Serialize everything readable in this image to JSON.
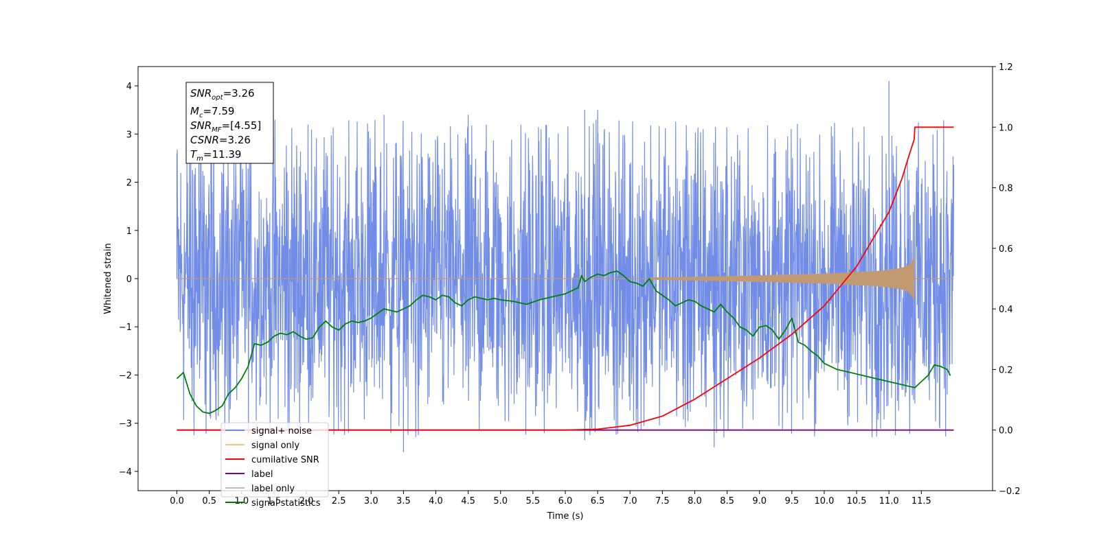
{
  "chart_data": {
    "type": "line",
    "xlabel": "Time (s)",
    "ylabel": "Whitened strain",
    "xlim": [
      -0.6,
      12.6
    ],
    "ylim": [
      -4.4,
      4.4
    ],
    "y2lim": [
      -0.2,
      1.2
    ],
    "x_ticks": [
      "0.0",
      "0.5",
      "1.0",
      "1.5",
      "2.0",
      "2.5",
      "3.0",
      "3.5",
      "4.0",
      "4.5",
      "5.0",
      "5.5",
      "6.0",
      "6.5",
      "7.0",
      "7.5",
      "8.0",
      "8.5",
      "9.0",
      "9.5",
      "10.0",
      "10.5",
      "11.0",
      "11.5"
    ],
    "y_ticks": [
      "4",
      "3",
      "2",
      "1",
      "0",
      "−1",
      "−2",
      "−3",
      "−4"
    ],
    "y2_ticks": [
      "1.2",
      "1.0",
      "0.8",
      "0.6",
      "0.4",
      "0.2",
      "0.0",
      "−0.2"
    ],
    "info_box": {
      "snr_opt": "=3.26",
      "mc": "=7.59",
      "snr_mf": "=[4.55]",
      "csnr": "=3.26",
      "tm": "=11.39"
    },
    "legend": [
      {
        "label": "signal+ noise",
        "color": "#6a87e6"
      },
      {
        "label": "signal only",
        "color": "#f5c47a"
      },
      {
        "label": "cumilative SNR",
        "color": "#ff0000"
      },
      {
        "label": "label",
        "color": "#800080"
      },
      {
        "label": "label only",
        "color": "#bbbbbb"
      },
      {
        "label": "signal statistics",
        "color": "#008000"
      }
    ],
    "series": [
      {
        "name": "signal+ noise",
        "axis": "left",
        "x_range": [
          0.0,
          12.0
        ],
        "envelope_upper": 2.3,
        "envelope_lower": -2.3,
        "spikes": [
          [
            0.0,
            2.6
          ],
          [
            3.2,
            3.4
          ],
          [
            4.5,
            3.4
          ],
          [
            6.5,
            3.5
          ],
          [
            6.3,
            3.5
          ],
          [
            11.0,
            4.1
          ],
          [
            3.5,
            -3.6
          ],
          [
            6.3,
            -3.35
          ],
          [
            8.3,
            -3.5
          ],
          [
            11.1,
            -3.25
          ]
        ],
        "color": "#6a87e6"
      },
      {
        "name": "signal only",
        "axis": "left",
        "x_range": [
          0.0,
          12.0
        ],
        "chirp_start": 7.3,
        "chirp_end": 11.39,
        "max_amplitude": 0.42,
        "color": "#c29a72"
      },
      {
        "name": "cumilative SNR",
        "axis": "right",
        "x": [
          0.0,
          6.0,
          6.5,
          7.0,
          7.5,
          8.0,
          8.5,
          9.0,
          9.5,
          10.0,
          10.5,
          11.0,
          11.2,
          11.3,
          11.39,
          11.4,
          12.0
        ],
        "values": [
          0.0,
          0.0,
          0.003,
          0.016,
          0.046,
          0.102,
          0.17,
          0.238,
          0.316,
          0.41,
          0.54,
          0.72,
          0.83,
          0.9,
          0.96,
          1.0,
          1.0
        ],
        "color": "#ff0000"
      },
      {
        "name": "label",
        "axis": "right",
        "x": [
          0.0,
          12.0
        ],
        "values": [
          0.0,
          0.0
        ],
        "color": "#800080"
      },
      {
        "name": "signal statistics",
        "axis": "right",
        "x": [
          0.0,
          0.1,
          0.2,
          0.3,
          0.4,
          0.5,
          0.6,
          0.7,
          0.8,
          0.9,
          1.0,
          1.1,
          1.2,
          1.3,
          1.4,
          1.5,
          1.6,
          1.7,
          1.8,
          1.9,
          2.0,
          2.1,
          2.2,
          2.3,
          2.4,
          2.5,
          2.6,
          2.7,
          2.8,
          2.9,
          3.0,
          3.2,
          3.4,
          3.6,
          3.7,
          3.8,
          3.9,
          4.0,
          4.1,
          4.2,
          4.3,
          4.4,
          4.5,
          4.6,
          4.7,
          4.8,
          4.9,
          5.0,
          5.2,
          5.4,
          5.6,
          5.8,
          6.0,
          6.1,
          6.2,
          6.25,
          6.3,
          6.4,
          6.5,
          6.6,
          6.7,
          6.8,
          6.9,
          7.0,
          7.1,
          7.2,
          7.3,
          7.4,
          7.5,
          7.6,
          7.7,
          7.8,
          7.9,
          8.0,
          8.1,
          8.2,
          8.3,
          8.4,
          8.5,
          8.6,
          8.7,
          8.8,
          8.9,
          9.0,
          9.1,
          9.2,
          9.3,
          9.4,
          9.5,
          9.6,
          9.7,
          9.8,
          9.9,
          10.0,
          10.2,
          10.4,
          10.6,
          10.8,
          11.0,
          11.2,
          11.3,
          11.4,
          11.5,
          11.6,
          11.7,
          11.8,
          11.9,
          11.95
        ],
        "values": [
          0.17,
          0.19,
          0.12,
          0.08,
          0.06,
          0.055,
          0.065,
          0.08,
          0.12,
          0.14,
          0.17,
          0.21,
          0.285,
          0.28,
          0.29,
          0.31,
          0.32,
          0.315,
          0.325,
          0.31,
          0.3,
          0.305,
          0.34,
          0.36,
          0.34,
          0.33,
          0.35,
          0.36,
          0.355,
          0.36,
          0.37,
          0.4,
          0.39,
          0.41,
          0.43,
          0.445,
          0.44,
          0.43,
          0.445,
          0.44,
          0.42,
          0.41,
          0.43,
          0.44,
          0.435,
          0.43,
          0.435,
          0.43,
          0.425,
          0.415,
          0.43,
          0.44,
          0.45,
          0.46,
          0.47,
          0.51,
          0.49,
          0.505,
          0.515,
          0.51,
          0.52,
          0.525,
          0.51,
          0.49,
          0.485,
          0.475,
          0.5,
          0.46,
          0.445,
          0.43,
          0.41,
          0.42,
          0.43,
          0.425,
          0.41,
          0.4,
          0.39,
          0.415,
          0.39,
          0.37,
          0.34,
          0.33,
          0.31,
          0.34,
          0.345,
          0.33,
          0.3,
          0.33,
          0.37,
          0.29,
          0.28,
          0.26,
          0.245,
          0.22,
          0.2,
          0.19,
          0.18,
          0.17,
          0.16,
          0.15,
          0.145,
          0.14,
          0.16,
          0.18,
          0.215,
          0.21,
          0.2,
          0.18
        ],
        "color": "#008000"
      }
    ]
  }
}
